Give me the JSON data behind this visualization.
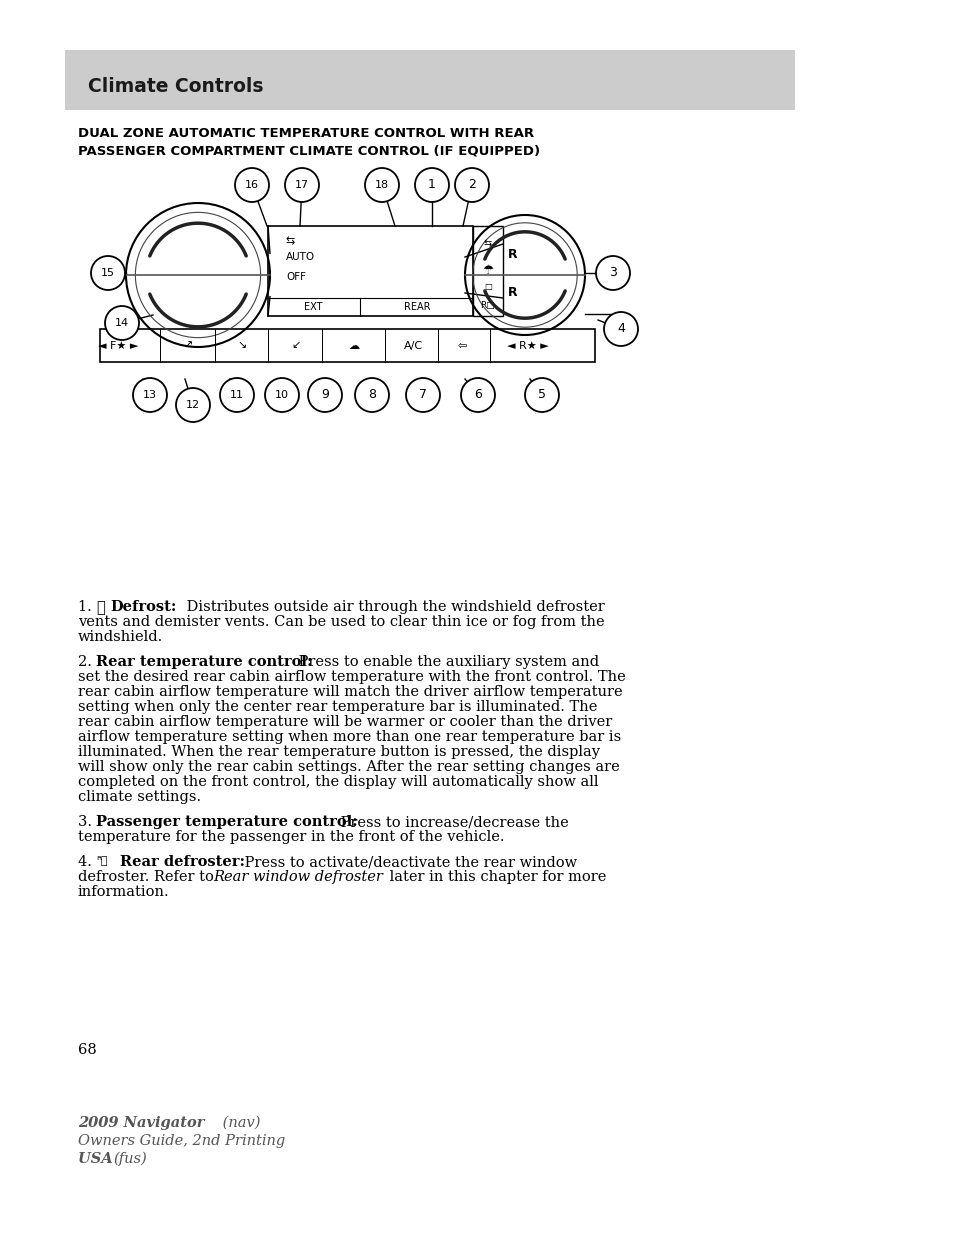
{
  "page_bg": "#ffffff",
  "header_bg": "#cccccc",
  "header_text": "Climate Controls",
  "subtitle": "DUAL ZONE AUTOMATIC TEMPERATURE CONTROL WITH REAR\nPASSENGER COMPARTMENT CLIMATE CONTROL (IF EQUIPPED)",
  "footer_line1_bold": "2009 Navigator",
  "footer_line1_normal": " (nav)",
  "footer_line2": "Owners Guide, 2nd Printing",
  "footer_line3": "USA ",
  "footer_line3_normal": "(fus)",
  "page_number": "68",
  "para1_pre": "1. ",
  "para1_bold": "Defrost:",
  "para1_rest": " Distributes outside air through the windshield defroster vents and demister vents. Can be used to clear thin ice or fog from the windshield.",
  "para2_pre": "2. ",
  "para2_bold": "Rear temperature control:",
  "para2_rest": " Press to enable the auxiliary system and set the desired rear cabin airflow temperature with the front control. The rear cabin airflow temperature will match the driver airflow temperature setting when only the center rear temperature bar is illuminated. The rear cabin airflow temperature will be warmer or cooler than the driver airflow temperature setting when more than one rear temperature bar is illuminated. When the rear temperature button is pressed, the display will show only the rear cabin settings. After the rear setting changes are completed on the front control, the display will automatically show all climate settings.",
  "para3_pre": "3. ",
  "para3_bold": "Passenger temperature control:",
  "para3_rest": " Press to increase/decrease the temperature for the passenger in the front of the vehicle.",
  "para4_pre": "4. ",
  "para4_bold": "Rear defroster:",
  "para4_rest": " Press to activate/deactivate the rear window defroster. Refer to ",
  "para4_italic": "Rear window defroster",
  "para4_end": " later in this chapter for more information."
}
